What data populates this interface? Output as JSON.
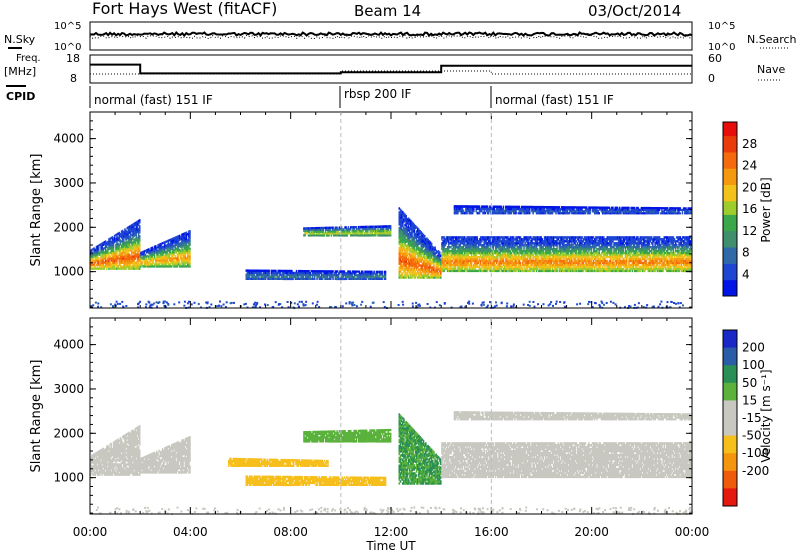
{
  "header": {
    "station": "Fort Hays West (fitACF)",
    "beam": "Beam 14",
    "date": "03/Oct/2014"
  },
  "top_panels": {
    "nsky_label": "N.Sky",
    "nsearch_label": "N.Search",
    "noise_ticks": [
      "10^5",
      "10^0"
    ],
    "freq_label_line1": "Freq.",
    "freq_label_line2": "[MHz]",
    "freq_ticks": [
      "18",
      "8"
    ],
    "nave_label": "Nave",
    "nave_ticks": [
      "60",
      "0"
    ],
    "cpid_label": "CPID"
  },
  "modes": [
    {
      "label": "normal (fast) 151 IF",
      "start_h": 0,
      "end_h": 10
    },
    {
      "label": "rbsp 200 IF",
      "start_h": 10,
      "end_h": 16
    },
    {
      "label": "normal (fast) 151 IF",
      "start_h": 16,
      "end_h": 24
    }
  ],
  "colors": {
    "power_scale": [
      "#0015e6",
      "#1e46d2",
      "#2f6aa8",
      "#3f8f6e",
      "#3aa84a",
      "#9dcc2c",
      "#f3c21b",
      "#f59a10",
      "#f46a0d",
      "#ea3b0a",
      "#e60e0a"
    ],
    "velocity_scale": [
      "#e6190f",
      "#ef5a0c",
      "#f4950e",
      "#f6bf1c",
      "#c8c8c0",
      "#c8c8c0",
      "#5ab23c",
      "#2a8f54",
      "#2a5ca8",
      "#1a28c8"
    ]
  },
  "chart_data": [
    {
      "type": "heatmap",
      "name": "power",
      "xlabel": "Time UT",
      "ylabel": "Slant Range [km]",
      "xlim": [
        0,
        24
      ],
      "ylim": [
        180,
        4600
      ],
      "x_ticks": [
        "00:00",
        "04:00",
        "08:00",
        "12:00",
        "16:00",
        "20:00",
        "00:00"
      ],
      "y_ticks": [
        1000,
        2000,
        3000,
        4000
      ],
      "colorbar_label": "Power [dB]",
      "colorbar_range": [
        0,
        32
      ],
      "colorbar_ticks": [
        4,
        8,
        12,
        16,
        20,
        24,
        28
      ],
      "bands": [
        {
          "t0": 0.0,
          "t1": 2.0,
          "r0": 1050,
          "r1": 1500,
          "r1_end": 2200,
          "peak": 26
        },
        {
          "t0": 2.0,
          "t1": 4.0,
          "r0": 1100,
          "r1": 1450,
          "r1_end": 1950,
          "peak": 22
        },
        {
          "t0": 6.2,
          "t1": 11.8,
          "r0": 820,
          "r1": 1050,
          "r1_end": 1020,
          "peak": 9
        },
        {
          "t0": 8.5,
          "t1": 12.0,
          "r0": 1800,
          "r1": 2000,
          "r1_end": 2050,
          "peak": 18
        },
        {
          "t0": 12.3,
          "t1": 14.0,
          "r0": 850,
          "r1": 2450,
          "r1_end": 1400,
          "peak": 26
        },
        {
          "t0": 14.0,
          "t1": 24.0,
          "r0": 1000,
          "r1": 1800,
          "r1_end": 1800,
          "peak": 24
        },
        {
          "t0": 14.5,
          "t1": 24.0,
          "r0": 2300,
          "r1": 2500,
          "r1_end": 2450,
          "peak": 6
        }
      ]
    },
    {
      "type": "heatmap",
      "name": "velocity",
      "xlabel": "Time UT",
      "ylabel": "Slant Range [km]",
      "xlim": [
        0,
        24
      ],
      "ylim": [
        180,
        4600
      ],
      "x_ticks": [
        "00:00",
        "04:00",
        "08:00",
        "12:00",
        "16:00",
        "20:00",
        "00:00"
      ],
      "y_ticks": [
        1000,
        2000,
        3000,
        4000
      ],
      "colorbar_label": "Velocity [m s⁻¹]",
      "colorbar_ticks": [
        "200",
        "100",
        "50",
        "15",
        "-15",
        "-50",
        "-100",
        "-200"
      ],
      "bands": [
        {
          "t0": 0.0,
          "t1": 2.0,
          "r0": 1050,
          "r1": 1500,
          "r1_end": 2200,
          "vel": 0
        },
        {
          "t0": 2.0,
          "t1": 4.0,
          "r0": 1100,
          "r1": 1450,
          "r1_end": 1950,
          "vel": 0
        },
        {
          "t0": 6.2,
          "t1": 11.8,
          "r0": 820,
          "r1": 1050,
          "r1_end": 1020,
          "vel": -40
        },
        {
          "t0": 5.5,
          "t1": 9.5,
          "r0": 1250,
          "r1": 1450,
          "r1_end": 1400,
          "vel": -30
        },
        {
          "t0": 8.5,
          "t1": 12.0,
          "r0": 1800,
          "r1": 2050,
          "r1_end": 2100,
          "vel": 40
        },
        {
          "t0": 12.3,
          "t1": 14.0,
          "r0": 850,
          "r1": 2450,
          "r1_end": 1400,
          "vel": 50
        },
        {
          "t0": 14.0,
          "t1": 24.0,
          "r0": 1000,
          "r1": 1800,
          "r1_end": 1800,
          "vel": 0
        },
        {
          "t0": 14.5,
          "t1": 24.0,
          "r0": 2300,
          "r1": 2500,
          "r1_end": 2450,
          "vel": 0
        }
      ]
    }
  ]
}
